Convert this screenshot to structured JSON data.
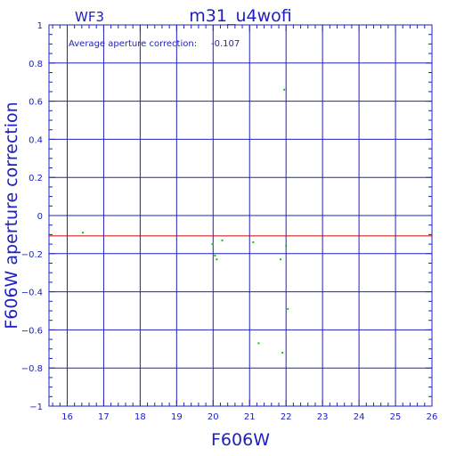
{
  "chart_data": {
    "type": "scatter",
    "chip": "WF3",
    "title": "m31_u4wofi",
    "annotation_label": "Average aperture correction:",
    "annotation_value": "-0.107",
    "xlabel": "F606W",
    "ylabel": "F606W aperture correction",
    "xlim": [
      15.5,
      26
    ],
    "ylim": [
      -1,
      1
    ],
    "xticks": [
      16,
      17,
      18,
      19,
      20,
      21,
      22,
      23,
      24,
      25,
      26
    ],
    "yticks": [
      -1,
      -0.8,
      -0.6,
      -0.4,
      -0.2,
      0,
      0.2,
      0.4,
      0.6,
      0.8,
      1
    ],
    "ytick_labels": [
      "−1",
      "−0.8",
      "−0.6",
      "−0.4",
      "−0.2",
      "0",
      "0.2",
      "0.4",
      "0.6",
      "0.8",
      "1"
    ],
    "grid": true,
    "reference_line": -0.107,
    "points": [
      {
        "x": 16.43,
        "y": -0.09
      },
      {
        "x": 19.98,
        "y": -0.15
      },
      {
        "x": 20.05,
        "y": -0.21
      },
      {
        "x": 20.1,
        "y": -0.23
      },
      {
        "x": 20.25,
        "y": -0.13
      },
      {
        "x": 21.1,
        "y": -0.14
      },
      {
        "x": 21.25,
        "y": -0.67
      },
      {
        "x": 21.85,
        "y": -0.23
      },
      {
        "x": 21.9,
        "y": -0.72
      },
      {
        "x": 21.95,
        "y": 0.66
      },
      {
        "x": 22.0,
        "y": -0.16
      },
      {
        "x": 22.05,
        "y": -0.49
      }
    ],
    "colors": {
      "axes": "#2020c0",
      "points": "#00cc00",
      "reference_line": "#cc0000"
    }
  }
}
